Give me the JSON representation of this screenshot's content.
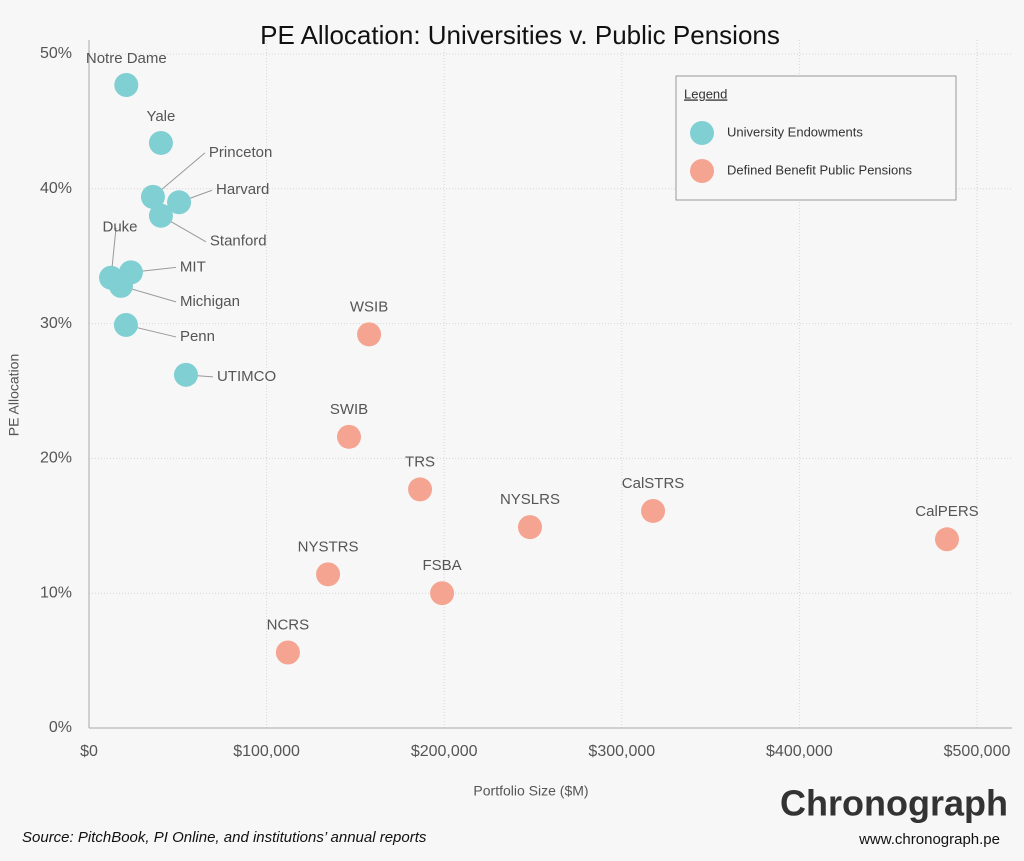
{
  "chart_data": {
    "type": "scatter",
    "title": "PE Allocation: Universities v. Public Pensions",
    "x_label": "Portfolio Size ($M)",
    "y_label": "PE Allocation",
    "xlim": [
      0,
      500000
    ],
    "ylim": [
      0,
      50
    ],
    "xticks": [
      {
        "value": 0,
        "label": "$0"
      },
      {
        "value": 100000,
        "label": "$100,000"
      },
      {
        "value": 200000,
        "label": "$200,000"
      },
      {
        "value": 300000,
        "label": "$300,000"
      },
      {
        "value": 400000,
        "label": "$400,000"
      },
      {
        "value": 500000,
        "label": "$500,000"
      }
    ],
    "yticks": [
      {
        "value": 0,
        "label": "0%"
      },
      {
        "value": 10,
        "label": "10%"
      },
      {
        "value": 20,
        "label": "20%"
      },
      {
        "value": 30,
        "label": "30%"
      },
      {
        "value": 40,
        "label": "40%"
      },
      {
        "value": 50,
        "label": "50%"
      }
    ],
    "grid": true,
    "legend_title": "Legend",
    "legend_position": "upper right",
    "series": [
      {
        "name": "University Endowments",
        "color": "#7fcfd3",
        "labels": [
          "Notre Dame",
          "Yale",
          "Princeton",
          "Harvard",
          "Stanford",
          "Duke",
          "MIT",
          "Michigan",
          "Penn",
          "UTIMCO"
        ],
        "x": [
          21000,
          40500,
          36000,
          50700,
          40500,
          12400,
          23600,
          18000,
          20800,
          54600
        ],
        "values": [
          47.7,
          43.4,
          39.4,
          39.0,
          38.0,
          33.4,
          33.8,
          32.8,
          29.9,
          26.2
        ]
      },
      {
        "name": "Defined Benefit Public Pensions",
        "color": "#f4a491",
        "labels": [
          "WSIB",
          "SWIB",
          "TRS",
          "NYSLRS",
          "CalSTRS",
          "CalPERS",
          "NYSTRS",
          "FSBA",
          "NCRS"
        ],
        "x": [
          157700,
          146400,
          186400,
          248300,
          317600,
          483100,
          134600,
          198800,
          112000
        ],
        "values": [
          29.2,
          21.6,
          17.7,
          14.9,
          16.1,
          14.0,
          11.4,
          10.0,
          5.6
        ]
      }
    ],
    "source": "Source: PitchBook, PI Online, and institutions’ annual reports",
    "brand": "Chronograph",
    "url": "www.chronograph.pe"
  }
}
